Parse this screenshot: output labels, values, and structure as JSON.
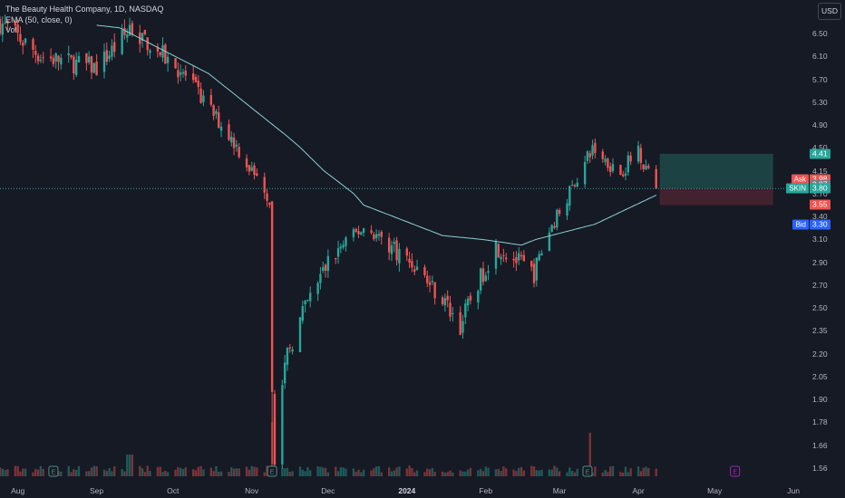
{
  "legend": {
    "title": "The Beauty Health Company, 1D, NASDAQ",
    "ema": "EMA (50, close, 0)",
    "vol": "Vol"
  },
  "currency_button": "USD",
  "price_axis": {
    "ticks": [
      "6.50",
      "6.10",
      "5.70",
      "5.30",
      "4.90",
      "4.50",
      "4.15",
      "3.70",
      "3.40",
      "3.10",
      "2.90",
      "2.70",
      "2.50",
      "2.35",
      "2.20",
      "2.05",
      "1.90",
      "1.78",
      "1.66",
      "1.56"
    ]
  },
  "time_axis": {
    "labels": [
      "Aug",
      "Sep",
      "Oct",
      "Nov",
      "Dec",
      "2024",
      "Feb",
      "Mar",
      "Apr",
      "May",
      "Jun"
    ]
  },
  "price_tags": {
    "target": "4.41",
    "ask_label": "Ask",
    "ask_value": "3.98",
    "mid_value": "3.87",
    "symbol_label": "SKIN",
    "last_value": "3.80",
    "stop_value": "3.55",
    "bid_label": "Bid",
    "bid_value": "3.30"
  },
  "event_markers": [
    "E",
    "E",
    "E",
    "E"
  ],
  "colors": {
    "up": "#26a69a",
    "down": "#ef5350",
    "ema": "#8ad0d2",
    "target_zone": "#1f4a4a",
    "stop_zone": "#4a2530",
    "bid": "#2962ff",
    "earnings_past": "#4d8f80",
    "earnings_future": "#9c27b0"
  },
  "chart_data": {
    "type": "candlestick",
    "title": "The Beauty Health Company, 1D, NASDAQ",
    "symbol": "SKIN",
    "interval": "1D",
    "currency": "USD",
    "ylim": [
      1.52,
      6.85
    ],
    "x_range": [
      "2023-07-25",
      "2024-06-07"
    ],
    "last_price": 3.8,
    "price_key_points": [
      {
        "date": "2023-07-25",
        "close": 6.7
      },
      {
        "date": "2023-08-10",
        "close": 6.1
      },
      {
        "date": "2023-09-01",
        "close": 5.9
      },
      {
        "date": "2023-09-15",
        "close": 6.6
      },
      {
        "date": "2023-10-05",
        "close": 5.8
      },
      {
        "date": "2023-10-25",
        "close": 4.6
      },
      {
        "date": "2023-11-06",
        "close": 3.8
      },
      {
        "date": "2023-11-08",
        "close": 3.6
      },
      {
        "date": "2023-11-10",
        "close": 1.62
      },
      {
        "date": "2023-11-15",
        "close": 2.2
      },
      {
        "date": "2023-12-01",
        "close": 2.9
      },
      {
        "date": "2023-12-15",
        "close": 3.25
      },
      {
        "date": "2024-01-05",
        "close": 2.85
      },
      {
        "date": "2024-01-22",
        "close": 2.38
      },
      {
        "date": "2024-02-05",
        "close": 3.05
      },
      {
        "date": "2024-02-20",
        "close": 2.8
      },
      {
        "date": "2024-03-05",
        "close": 3.75
      },
      {
        "date": "2024-03-14",
        "close": 4.5
      },
      {
        "date": "2024-03-25",
        "close": 4.1
      },
      {
        "date": "2024-04-01",
        "close": 4.5
      },
      {
        "date": "2024-04-08",
        "close": 3.8
      }
    ],
    "ema50_key_points": [
      {
        "date": "2023-09-10",
        "value": 6.6
      },
      {
        "date": "2023-10-15",
        "value": 5.8
      },
      {
        "date": "2023-11-15",
        "value": 4.7
      },
      {
        "date": "2023-12-15",
        "value": 3.55
      },
      {
        "date": "2024-01-15",
        "value": 3.15
      },
      {
        "date": "2024-02-15",
        "value": 3.05
      },
      {
        "date": "2024-03-15",
        "value": 3.3
      },
      {
        "date": "2024-04-08",
        "value": 3.68
      }
    ],
    "position": {
      "entry": 3.8,
      "target": 4.41,
      "stop": 3.55
    },
    "ask": 3.98,
    "bid": 3.3,
    "earnings_dates": [
      "2023-08-15",
      "2023-11-09",
      "2024-03-12",
      "2024-05-09"
    ]
  }
}
